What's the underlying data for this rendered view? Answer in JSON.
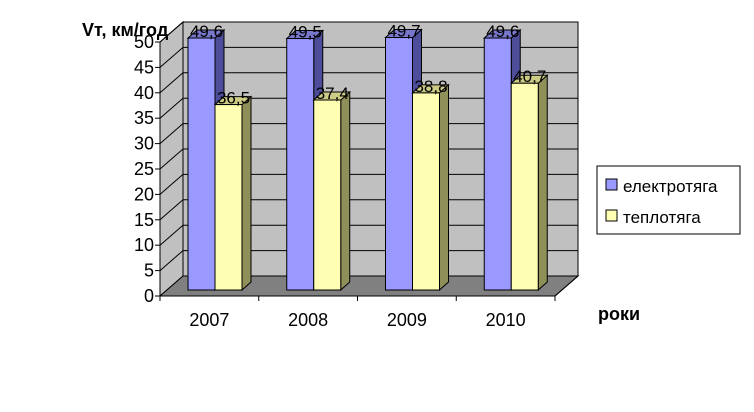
{
  "chart_data": {
    "type": "bar",
    "categories": [
      "2007",
      "2008",
      "2009",
      "2010"
    ],
    "series": [
      {
        "name": "електротяга",
        "values": [
          49.6,
          49.5,
          49.7,
          49.6
        ],
        "labels": [
          "49,6",
          "49,5",
          "49,7",
          "49,6"
        ]
      },
      {
        "name": "теплотяга",
        "values": [
          36.5,
          37.4,
          38.8,
          40.7
        ],
        "labels": [
          "36,5",
          "37,4",
          "38,8",
          "40,7"
        ]
      }
    ],
    "ylabel": "Vт, км/год",
    "xlabel": "роки",
    "ylim": [
      0,
      50
    ],
    "yticks": [
      "0",
      "5",
      "10",
      "15",
      "20",
      "25",
      "30",
      "35",
      "40",
      "45",
      "50"
    ],
    "grid": true,
    "three_d": true,
    "legend_position": "right"
  },
  "colors": {
    "series_1_front": "#9999ff",
    "series_1_side": "#4d4d99",
    "series_1_top": "#7777cc",
    "series_2_front": "#ffffb3",
    "series_2_side": "#8f8f59",
    "series_2_top": "#cccc85",
    "wall": "#c0c0c0",
    "floor": "#808080"
  }
}
